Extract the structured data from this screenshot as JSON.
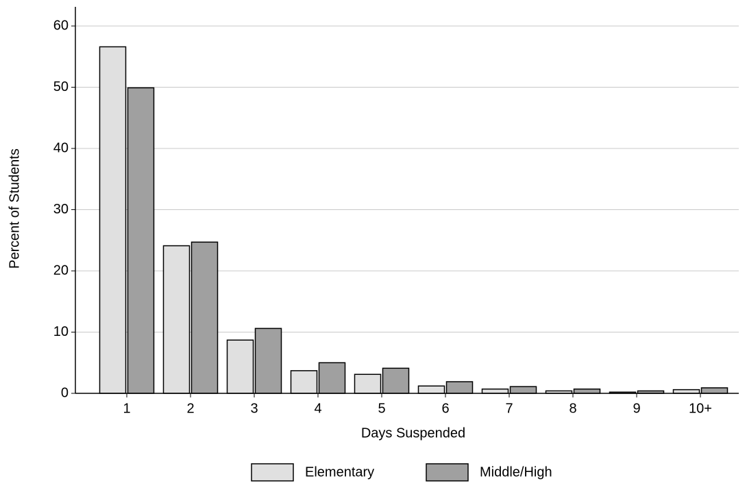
{
  "chart_data": {
    "type": "bar",
    "x_label": "Days Suspended",
    "y_label": "Percent of Students",
    "categories": [
      "1",
      "2",
      "3",
      "4",
      "5",
      "6",
      "7",
      "8",
      "9",
      "10+"
    ],
    "series": [
      {
        "name": "Elementary",
        "color": "#e0e0e0",
        "values": [
          56.6,
          24.1,
          8.7,
          3.7,
          3.1,
          1.2,
          0.7,
          0.4,
          0.2,
          0.6
        ]
      },
      {
        "name": "Middle/High",
        "color": "#a0a0a0",
        "values": [
          49.9,
          24.7,
          10.6,
          5.0,
          4.1,
          1.9,
          1.1,
          0.7,
          0.4,
          0.9
        ]
      }
    ],
    "ylim": [
      0,
      60
    ],
    "yticks": [
      0,
      10,
      20,
      30,
      40,
      50,
      60
    ],
    "grid": true
  }
}
